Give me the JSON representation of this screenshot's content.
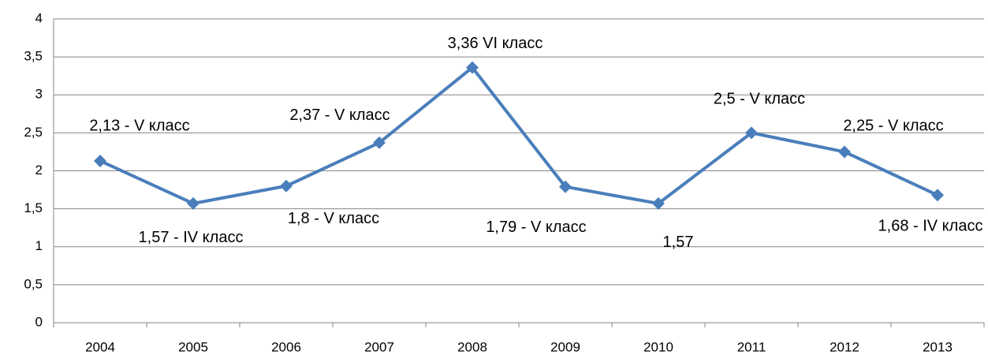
{
  "chart_data": {
    "type": "line",
    "categories": [
      "2004",
      "2005",
      "2006",
      "2007",
      "2008",
      "2009",
      "2010",
      "2011",
      "2012",
      "2013"
    ],
    "values": [
      2.13,
      1.57,
      1.8,
      2.37,
      3.36,
      1.79,
      1.57,
      2.5,
      2.25,
      1.68
    ],
    "value_labels": [
      "2,13 - V класс",
      "1,57 - IV класс",
      "1,8 - V класс",
      "2,37 - V класс",
      "3,36 VI класс",
      "1,79 - V класс",
      "1,57",
      "2,5 - V класс",
      "2,25 - V класс",
      "1,68 - IV класс"
    ],
    "color": "#4a7ebb",
    "ylim": [
      0,
      4
    ],
    "yticks": [
      0,
      {
        "value": 0.5,
        "label": "0,5"
      },
      1,
      {
        "value": 1.5,
        "label": "1,5"
      },
      2,
      {
        "value": 2.5,
        "label": "2,5"
      },
      3,
      {
        "value": 3.5,
        "label": "3,5"
      },
      4
    ],
    "grid": true
  }
}
